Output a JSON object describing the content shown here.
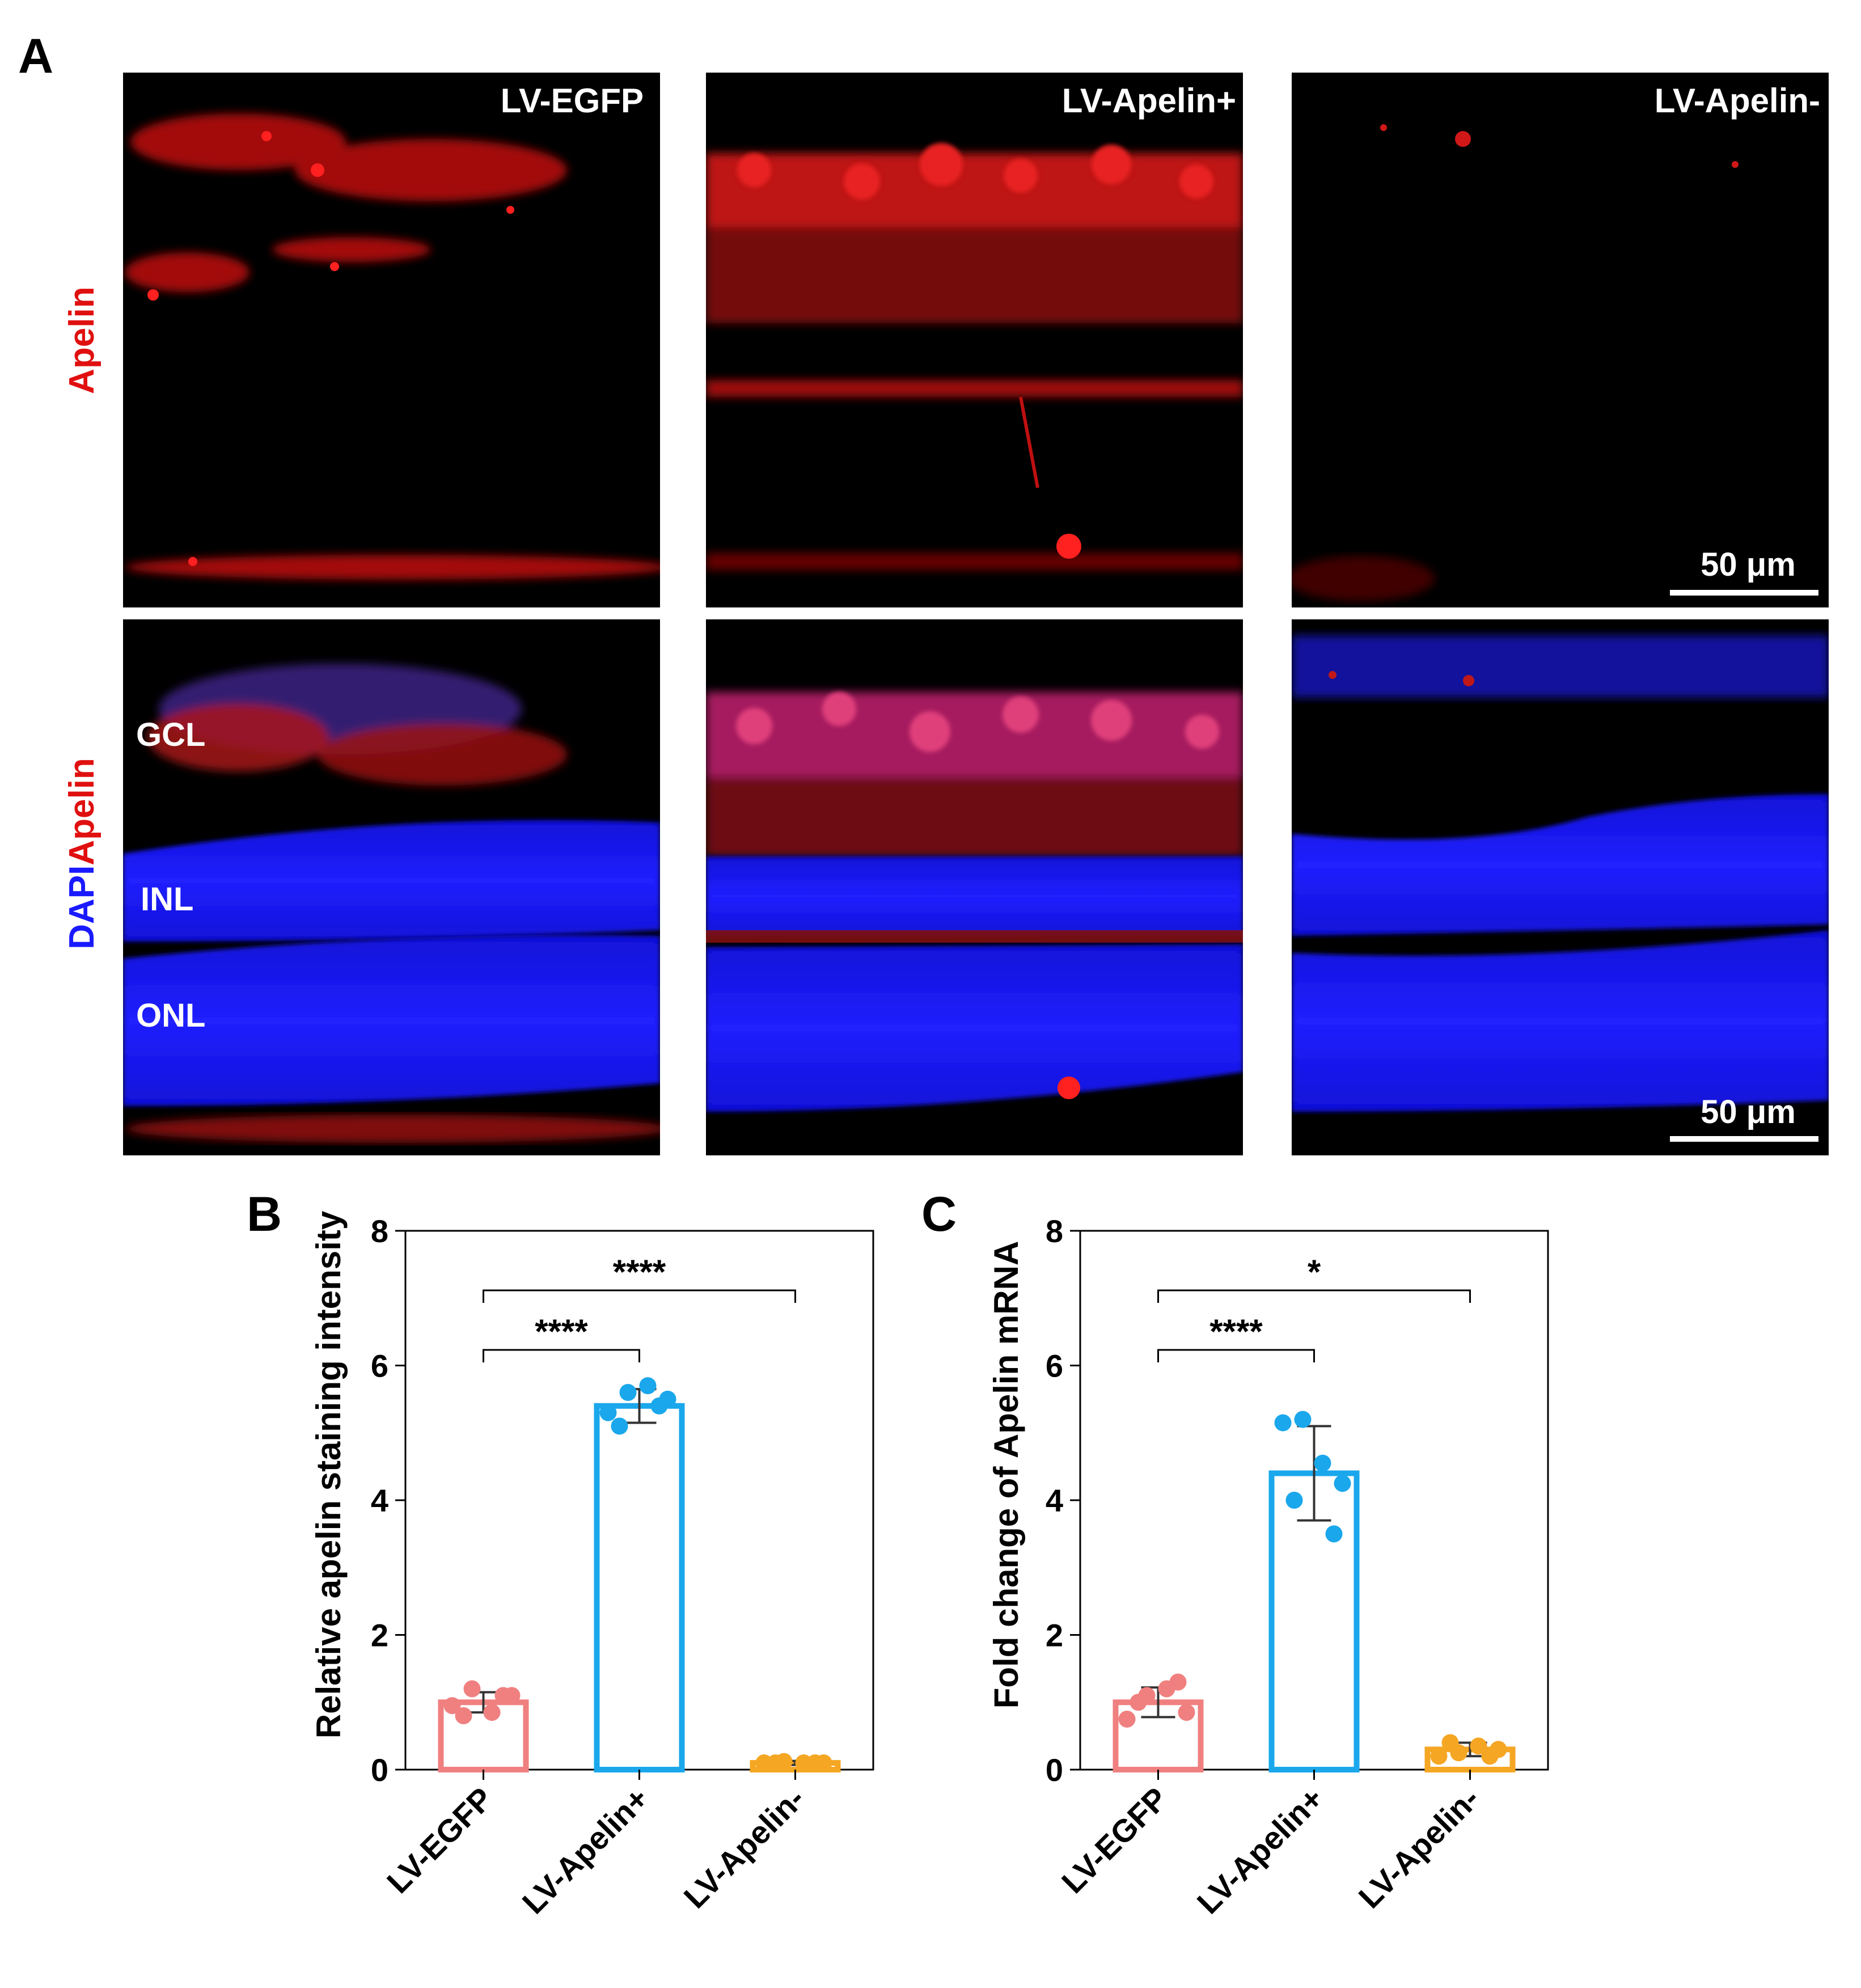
{
  "panel_a": {
    "letter": "A",
    "row_label_top": "Apelin",
    "row_label_bottom": {
      "dapi": "DAPI",
      "apelin": "Apelin"
    },
    "column_titles": [
      "LV-EGFP",
      "LV-Apelin+",
      "LV-Apelin-"
    ],
    "layer_labels": [
      "GCL",
      "INL",
      "ONL"
    ],
    "scale_bar_label": "50 μm",
    "colors": {
      "apelin_stain": "#e01010",
      "dapi_stain": "#1a1aff",
      "background": "#000000"
    }
  },
  "chart_data": [
    {
      "panel": "B",
      "type": "bar",
      "ylabel": "Relative apelin staining intensity",
      "categories": [
        "LV-EGFP",
        "LV-Apelin+",
        "LV-Apelin-"
      ],
      "values": [
        1.0,
        5.4,
        0.1
      ],
      "error_sd": [
        0.15,
        0.25,
        0.03
      ],
      "points": [
        [
          0.95,
          1.2,
          0.85,
          1.1,
          0.8,
          1.1
        ],
        [
          5.3,
          5.6,
          5.7,
          5.5,
          5.1,
          5.4
        ],
        [
          0.1,
          0.12,
          0.1,
          0.1,
          0.1,
          0.1
        ]
      ],
      "colors": [
        "#f08080",
        "#1aa7ec",
        "#f5a623"
      ],
      "ylim": [
        0,
        8
      ],
      "yticks": [
        "0",
        "2",
        "4",
        "6",
        "8"
      ],
      "significance": [
        {
          "from": 0,
          "to": 1,
          "label": "****"
        },
        {
          "from": 0,
          "to": 2,
          "label": "****"
        }
      ]
    },
    {
      "panel": "C",
      "type": "bar",
      "ylabel": "Fold change of Apelin mRNA",
      "categories": [
        "LV-EGFP",
        "LV-Apelin+",
        "LV-Apelin-"
      ],
      "values": [
        1.0,
        4.4,
        0.3
      ],
      "error_sd": [
        0.22,
        0.7,
        0.1
      ],
      "points": [
        [
          0.75,
          1.1,
          1.2,
          0.85,
          1.0,
          1.3
        ],
        [
          5.15,
          5.2,
          4.55,
          4.25,
          4.0,
          3.5
        ],
        [
          0.2,
          0.25,
          0.35,
          0.3,
          0.4,
          0.2
        ]
      ],
      "colors": [
        "#f08080",
        "#1aa7ec",
        "#f5a623"
      ],
      "ylim": [
        0,
        8
      ],
      "yticks": [
        "0",
        "2",
        "4",
        "6",
        "8"
      ],
      "significance": [
        {
          "from": 0,
          "to": 1,
          "label": "****"
        },
        {
          "from": 0,
          "to": 2,
          "label": "*"
        }
      ]
    }
  ]
}
